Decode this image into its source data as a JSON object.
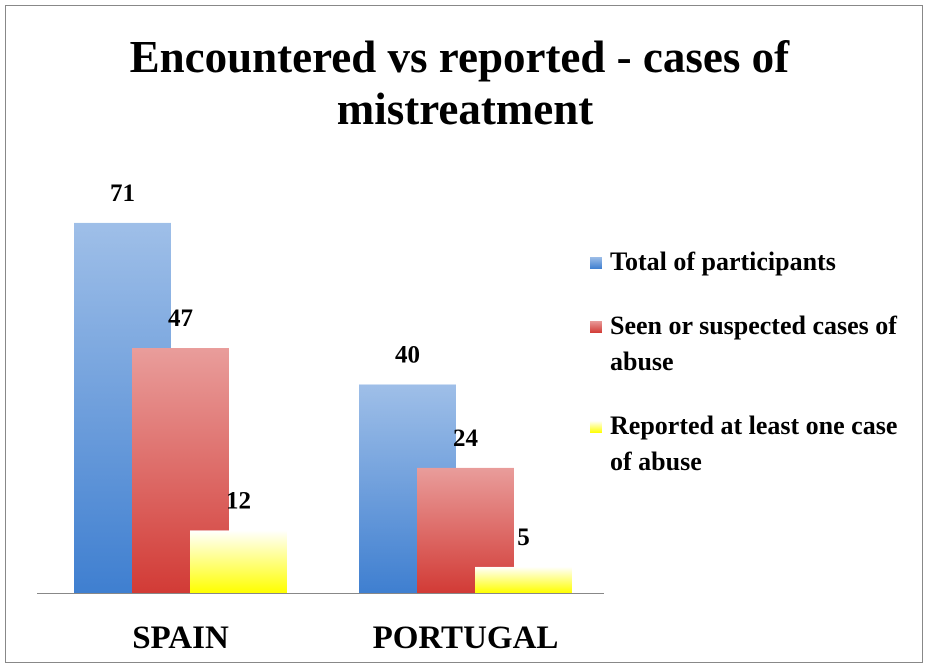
{
  "chart_data": {
    "type": "bar",
    "title": "Encountered vs reported - cases of mistreatment",
    "categories": [
      "SPAIN",
      "PORTUGAL"
    ],
    "series": [
      {
        "name": "Total of participants",
        "color": "#3f7fd0",
        "values": [
          71,
          40
        ]
      },
      {
        "name": "Seen or suspected cases of abuse",
        "color": "#d23b36",
        "values": [
          47,
          24
        ]
      },
      {
        "name": "Reported at least one case of abuse",
        "color": "#ffff00",
        "values": [
          12,
          5
        ]
      }
    ],
    "ylim": [
      0,
      80
    ],
    "legend": "right"
  }
}
